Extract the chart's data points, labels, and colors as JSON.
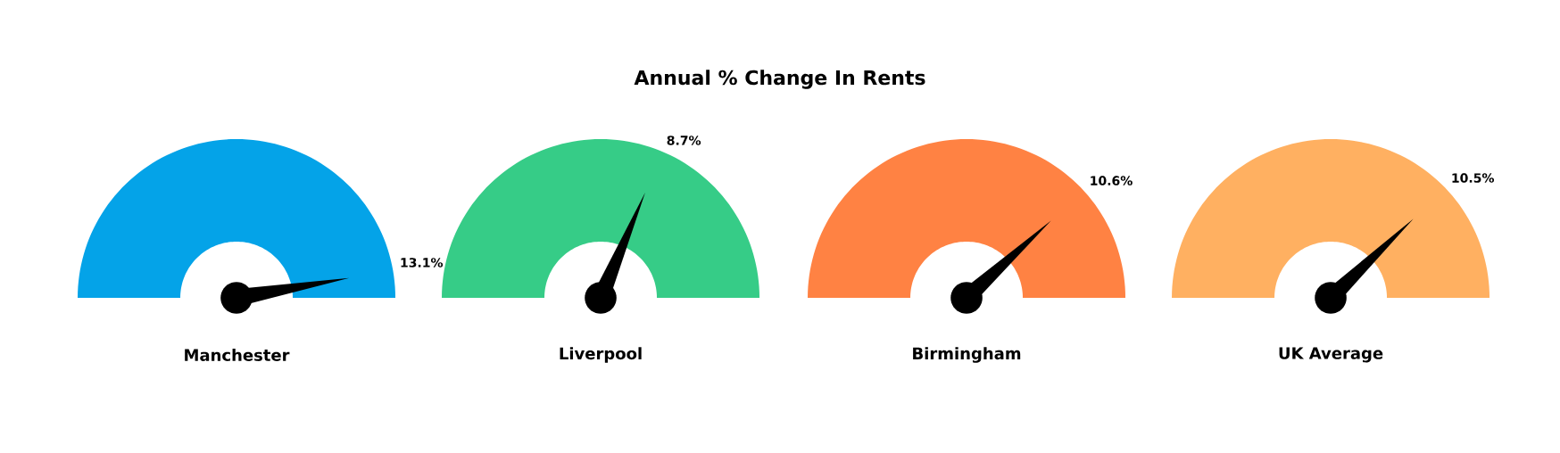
{
  "chart_data": [
    {
      "type": "other",
      "title": "Annual % Change In Rents",
      "xlabel": "Manchester",
      "values": [
        13.1
      ],
      "value_labels": [
        "13.1%"
      ],
      "color": "#04a3e8"
    },
    {
      "type": "other",
      "xlabel": "Liverpool",
      "values": [
        8.7
      ],
      "value_labels": [
        "8.7%"
      ],
      "color": "#36cc87"
    },
    {
      "type": "other",
      "xlabel": "Birmingham",
      "values": [
        10.6
      ],
      "value_labels": [
        "10.6%"
      ],
      "color": "#ff8243"
    },
    {
      "type": "other",
      "xlabel": "UK Average",
      "values": [
        10.5
      ],
      "value_labels": [
        "10.5%"
      ],
      "color": "#ffb061"
    }
  ]
}
